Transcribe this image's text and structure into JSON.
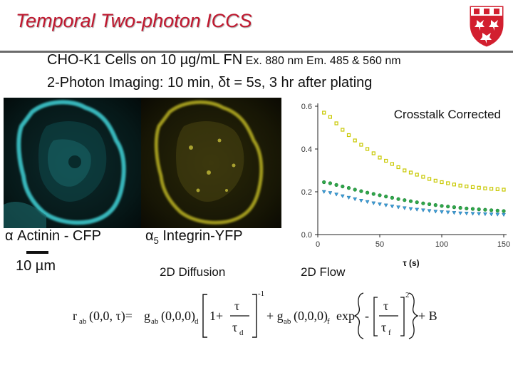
{
  "slide": {
    "title": "Temporal Two-photon ICCS",
    "subtitle_line1_main": "CHO-K1 Cells on 10 µg/mL FN",
    "subtitle_line1_small": " Ex. 880 nm Em. 485 & 560 nm",
    "subtitle_line2": "2-Photon Imaging: 10 min, δt = 5s, 3 hr after plating"
  },
  "images": {
    "cfp_label": "α Actinin - CFP",
    "yfp_label_prefix": "α",
    "yfp_label_sub": "5",
    "yfp_label_suffix": " Integrin-YFP",
    "scale_label": "10 µm"
  },
  "models": {
    "diffusion_label": "2D Diffusion",
    "flow_label": "2D Flow"
  },
  "equation": {
    "lhs": "r",
    "lhs_sub": "ab",
    "lhs_args": "(0,0, τ)=",
    "g1": "g",
    "g1_sub": "ab",
    "g1_args": "(0,0,0)",
    "g1_sub_d": "d",
    "one_plus": "1+",
    "tau": "τ",
    "tau_d": "τ",
    "tau_d_sub": "d",
    "exp_neg1": "-1",
    "plus_g2": "+ g",
    "g2_sub": "ab",
    "g2_args": "(0,0,0)",
    "g2_sub_f": "f",
    "exp": "exp",
    "minus": "-",
    "tau_f": "τ",
    "tau_f_sub": "f",
    "exp_2": "2",
    "plus_b": "+ B"
  },
  "colors": {
    "title": "#c0172e",
    "series_yellow": "#c8c800",
    "series_green": "#2ea84a",
    "series_blue": "#3aa0d8",
    "cfp_cyan": "#40d8d8",
    "yfp_yellow": "#c8c020"
  },
  "logo": {
    "icon": "mcgill-shield-icon"
  },
  "chart_data": {
    "type": "scatter",
    "title": "Crosstalk Corrected",
    "xlabel": "τ (s)",
    "ylabel": "",
    "xlim": [
      0,
      150
    ],
    "ylim": [
      0.0,
      0.6
    ],
    "xticks": [
      "0",
      "50",
      "100",
      "150"
    ],
    "yticks": [
      "0.0",
      "0.2",
      "0.4",
      "0.6"
    ],
    "grid": false,
    "series": [
      {
        "marker": "square",
        "color": "#c8c800",
        "x": [
          5,
          10,
          15,
          20,
          25,
          30,
          35,
          40,
          45,
          50,
          55,
          60,
          65,
          70,
          75,
          80,
          85,
          90,
          95,
          100,
          105,
          110,
          115,
          120,
          125,
          130,
          135,
          140,
          145,
          150
        ],
        "y": [
          0.57,
          0.55,
          0.52,
          0.49,
          0.465,
          0.44,
          0.42,
          0.4,
          0.38,
          0.36,
          0.345,
          0.33,
          0.315,
          0.3,
          0.29,
          0.28,
          0.27,
          0.26,
          0.252,
          0.245,
          0.24,
          0.234,
          0.229,
          0.225,
          0.222,
          0.219,
          0.216,
          0.214,
          0.212,
          0.21
        ]
      },
      {
        "marker": "circle",
        "color": "#2ea84a",
        "x": [
          5,
          10,
          15,
          20,
          25,
          30,
          35,
          40,
          45,
          50,
          55,
          60,
          65,
          70,
          75,
          80,
          85,
          90,
          95,
          100,
          105,
          110,
          115,
          120,
          125,
          130,
          135,
          140,
          145,
          150
        ],
        "y": [
          0.245,
          0.24,
          0.232,
          0.225,
          0.218,
          0.21,
          0.203,
          0.196,
          0.19,
          0.184,
          0.178,
          0.172,
          0.166,
          0.161,
          0.156,
          0.151,
          0.146,
          0.142,
          0.138,
          0.134,
          0.131,
          0.128,
          0.125,
          0.122,
          0.12,
          0.118,
          0.116,
          0.114,
          0.112,
          0.11
        ]
      },
      {
        "marker": "triangle-down",
        "color": "#3aa0d8",
        "x": [
          5,
          10,
          15,
          20,
          25,
          30,
          35,
          40,
          45,
          50,
          55,
          60,
          65,
          70,
          75,
          80,
          85,
          90,
          95,
          100,
          105,
          110,
          115,
          120,
          125,
          130,
          135,
          140,
          145,
          150
        ],
        "y": [
          0.2,
          0.195,
          0.188,
          0.18,
          0.173,
          0.166,
          0.159,
          0.153,
          0.147,
          0.142,
          0.137,
          0.132,
          0.128,
          0.124,
          0.12,
          0.117,
          0.114,
          0.111,
          0.108,
          0.106,
          0.104,
          0.102,
          0.1,
          0.099,
          0.098,
          0.097,
          0.096,
          0.095,
          0.094,
          0.093
        ]
      }
    ]
  }
}
